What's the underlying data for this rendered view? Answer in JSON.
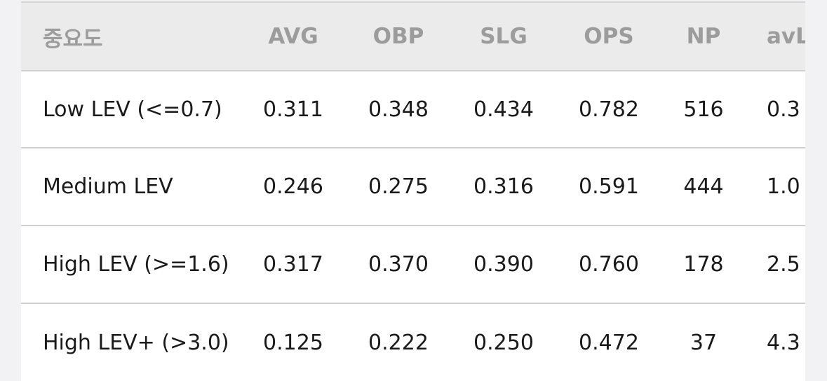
{
  "table": {
    "header": [
      "중요도",
      "AVG",
      "OBP",
      "SLG",
      "OPS",
      "NP",
      "avL"
    ],
    "rows": [
      [
        "Low LEV (<=0.7)",
        "0.311",
        "0.348",
        "0.434",
        "0.782",
        "516",
        "0.3"
      ],
      [
        "Medium LEV",
        "0.246",
        "0.275",
        "0.316",
        "0.591",
        "444",
        "1.0"
      ],
      [
        "High LEV (>=1.6)",
        "0.317",
        "0.370",
        "0.390",
        "0.760",
        "178",
        "2.5"
      ],
      [
        "High LEV+ (>3.0)",
        "0.125",
        "0.222",
        "0.250",
        "0.472",
        "37",
        "4.3"
      ]
    ]
  }
}
